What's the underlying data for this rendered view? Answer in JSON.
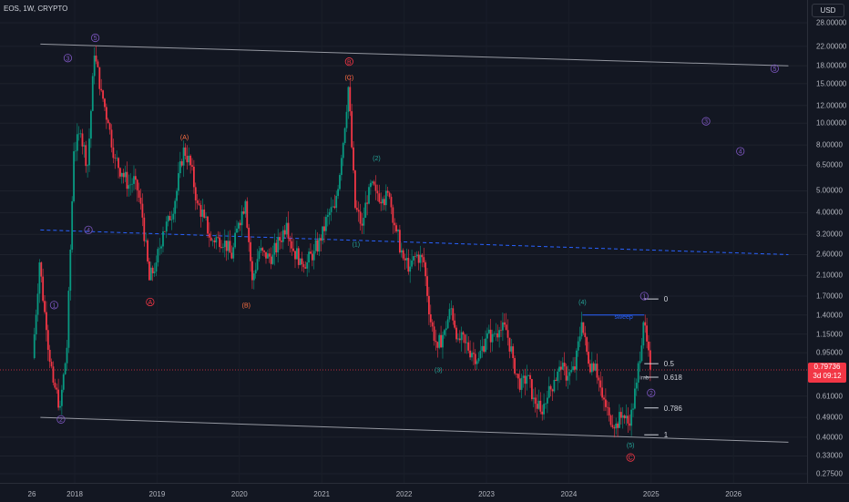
{
  "header": {
    "symbol": "EOS, 1W, CRYPTO",
    "currency": "USD"
  },
  "colors": {
    "bull": "#089981",
    "bear": "#f23645",
    "purple": "#7e57c2",
    "teal": "#26a69a",
    "orange": "#ff7043",
    "blue": "#2962ff",
    "channel": "#9598a1",
    "bg": "#131722"
  },
  "price_badge": {
    "price": "0.79736",
    "countdown": "3d 09:12"
  },
  "chart_data": {
    "type": "candlestick",
    "title": "",
    "xlabel": "",
    "ylabel": "",
    "y_scale": "log",
    "ylim": [
      0.26,
      30
    ],
    "x_ticks": [
      "26",
      "2018",
      "2019",
      "2020",
      "2021",
      "2022",
      "2023",
      "2024",
      "2025",
      "2026"
    ],
    "y_ticks": [
      "28.00000",
      "22.00000",
      "18.00000",
      "15.00000",
      "12.00000",
      "10.00000",
      "8.00000",
      "6.50000",
      "5.00000",
      "4.00000",
      "3.20000",
      "2.60000",
      "2.10000",
      "1.70000",
      "1.40000",
      "1.15000",
      "0.95000",
      "0.61000",
      "0.49000",
      "0.40000",
      "0.33000",
      "0.27500"
    ],
    "price_path": [
      [
        "2017-07",
        0.9
      ],
      [
        "2017-08",
        2.4
      ],
      [
        "2017-09",
        1.2
      ],
      [
        "2017-10",
        0.7
      ],
      [
        "2017-11",
        0.55
      ],
      [
        "2017-12",
        1.0
      ],
      [
        "2018-01",
        7.5
      ],
      [
        "2018-02",
        9.0
      ],
      [
        "2018-03",
        6.5
      ],
      [
        "2018-04",
        20.0
      ],
      [
        "2018-05",
        14.0
      ],
      [
        "2018-06",
        10.0
      ],
      [
        "2018-07",
        7.0
      ],
      [
        "2018-08",
        6.0
      ],
      [
        "2018-09",
        5.3
      ],
      [
        "2018-10",
        5.6
      ],
      [
        "2018-11",
        3.8
      ],
      [
        "2018-12",
        2.0
      ],
      [
        "2019-01",
        2.4
      ],
      [
        "2019-02",
        3.3
      ],
      [
        "2019-03",
        3.7
      ],
      [
        "2019-04",
        5.0
      ],
      [
        "2019-05",
        7.8
      ],
      [
        "2019-06",
        6.5
      ],
      [
        "2019-07",
        4.4
      ],
      [
        "2019-08",
        3.8
      ],
      [
        "2019-09",
        3.0
      ],
      [
        "2019-10",
        3.1
      ],
      [
        "2019-11",
        3.0
      ],
      [
        "2019-12",
        2.5
      ],
      [
        "2020-01",
        3.6
      ],
      [
        "2020-02",
        4.5
      ],
      [
        "2020-03",
        2.0
      ],
      [
        "2020-04",
        2.7
      ],
      [
        "2020-05",
        2.5
      ],
      [
        "2020-06",
        2.6
      ],
      [
        "2020-07",
        3.0
      ],
      [
        "2020-08",
        3.6
      ],
      [
        "2020-09",
        2.7
      ],
      [
        "2020-10",
        2.5
      ],
      [
        "2020-11",
        2.4
      ],
      [
        "2020-12",
        2.7
      ],
      [
        "2021-01",
        3.0
      ],
      [
        "2021-02",
        3.9
      ],
      [
        "2021-03",
        4.2
      ],
      [
        "2021-04",
        7.0
      ],
      [
        "2021-05",
        14.5
      ],
      [
        "2021-06",
        4.2
      ],
      [
        "2021-07",
        3.5
      ],
      [
        "2021-08",
        5.2
      ],
      [
        "2021-09",
        5.0
      ],
      [
        "2021-10",
        4.6
      ],
      [
        "2021-11",
        4.7
      ],
      [
        "2021-12",
        3.3
      ],
      [
        "2022-01",
        2.5
      ],
      [
        "2022-02",
        2.3
      ],
      [
        "2022-03",
        2.6
      ],
      [
        "2022-04",
        2.4
      ],
      [
        "2022-05",
        1.3
      ],
      [
        "2022-06",
        1.0
      ],
      [
        "2022-07",
        1.2
      ],
      [
        "2022-08",
        1.5
      ],
      [
        "2022-09",
        1.1
      ],
      [
        "2022-10",
        1.05
      ],
      [
        "2022-11",
        0.95
      ],
      [
        "2022-12",
        0.9
      ],
      [
        "2023-01",
        1.1
      ],
      [
        "2023-02",
        1.15
      ],
      [
        "2023-03",
        1.2
      ],
      [
        "2023-04",
        1.2
      ],
      [
        "2023-05",
        0.9
      ],
      [
        "2023-06",
        0.65
      ],
      [
        "2023-07",
        0.75
      ],
      [
        "2023-08",
        0.6
      ],
      [
        "2023-09",
        0.52
      ],
      [
        "2023-10",
        0.6
      ],
      [
        "2023-11",
        0.72
      ],
      [
        "2023-12",
        0.8
      ],
      [
        "2024-01",
        0.75
      ],
      [
        "2024-02",
        0.8
      ],
      [
        "2024-03",
        1.3
      ],
      [
        "2024-04",
        0.85
      ],
      [
        "2024-05",
        0.85
      ],
      [
        "2024-06",
        0.6
      ],
      [
        "2024-07",
        0.5
      ],
      [
        "2024-08",
        0.46
      ],
      [
        "2024-09",
        0.5
      ],
      [
        "2024-10",
        0.45
      ],
      [
        "2024-11",
        0.7
      ],
      [
        "2024-12",
        1.3
      ],
      [
        "2025-01",
        0.8
      ]
    ],
    "channel_upper": [
      [
        "2017-08",
        22.5
      ],
      [
        "2026-09",
        18.0
      ]
    ],
    "channel_lower": [
      [
        "2017-08",
        0.49
      ],
      [
        "2026-09",
        0.38
      ]
    ],
    "midline": [
      [
        "2017-08",
        3.35
      ],
      [
        "2026-09",
        2.6
      ]
    ],
    "current_price": 0.79736,
    "fib_levels": [
      {
        "label": "0",
        "price": 1.65
      },
      {
        "label": "0.5",
        "price": 0.85
      },
      {
        "label": "0.618",
        "price": 0.74
      },
      {
        "label": "0.786",
        "price": 0.54
      },
      {
        "label": "1",
        "price": 0.41
      }
    ],
    "annotations": [
      {
        "text": "3",
        "x": "2017-12",
        "y": 19.5,
        "style": "purple"
      },
      {
        "text": "5",
        "x": "2018-04",
        "y": 24.0,
        "style": "purple"
      },
      {
        "text": "1",
        "x": "2017-10",
        "y": 1.55,
        "style": "purple"
      },
      {
        "text": "2",
        "x": "2017-11",
        "y": 0.48,
        "style": "purple"
      },
      {
        "text": "4",
        "x": "2018-03",
        "y": 3.35,
        "style": "purple"
      },
      {
        "text": "A",
        "x": "2018-12",
        "y": 1.6,
        "style": "orange-circle"
      },
      {
        "text": "(A)",
        "x": "2019-05",
        "y": 8.7,
        "style": "orange"
      },
      {
        "text": "(B)",
        "x": "2020-02",
        "y": 1.55,
        "style": "orange"
      },
      {
        "text": "B",
        "x": "2021-05",
        "y": 18.8,
        "style": "orange-circle"
      },
      {
        "text": "(C)",
        "x": "2021-05",
        "y": 16.0,
        "style": "orange"
      },
      {
        "text": "(1)",
        "x": "2021-06",
        "y": 2.9,
        "style": "teal"
      },
      {
        "text": "(2)",
        "x": "2021-09",
        "y": 7.0,
        "style": "teal"
      },
      {
        "text": "(3)",
        "x": "2022-06",
        "y": 0.8,
        "style": "teal"
      },
      {
        "text": "(4)",
        "x": "2024-03",
        "y": 1.6,
        "style": "teal"
      },
      {
        "text": "(5)",
        "x": "2024-10",
        "y": 0.37,
        "style": "teal"
      },
      {
        "text": "C",
        "x": "2024-10",
        "y": 0.325,
        "style": "orange-circle"
      },
      {
        "text": "1",
        "x": "2024-12",
        "y": 1.7,
        "style": "purple"
      },
      {
        "text": "2",
        "x": "2025-01",
        "y": 0.63,
        "style": "purple"
      },
      {
        "text": "3",
        "x": "2025-09",
        "y": 10.2,
        "style": "purple"
      },
      {
        "text": "4",
        "x": "2026-02",
        "y": 7.5,
        "style": "purple"
      },
      {
        "text": "5",
        "x": "2026-07",
        "y": 17.5,
        "style": "purple"
      },
      {
        "text": "sweep",
        "x": "2024-09",
        "y": 1.38,
        "style": "blue"
      },
      {
        "text": "imb",
        "x": "2024-12",
        "y": 0.74,
        "style": "small"
      }
    ]
  }
}
